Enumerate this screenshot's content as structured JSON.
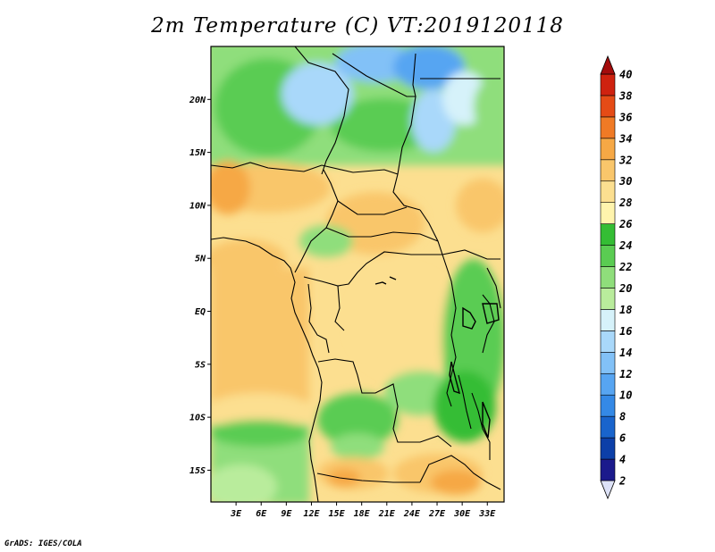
{
  "title": "2m Temperature (C) VT:2019120118",
  "credit": "GrADS: IGES/COLA",
  "map": {
    "lon_range": [
      0,
      35
    ],
    "lat_range": [
      -18,
      25
    ],
    "lat_ticks": [
      "20N",
      "15N",
      "10N",
      "5N",
      "EQ",
      "5S",
      "10S",
      "15S"
    ],
    "lon_ticks": [
      "3E",
      "6E",
      "9E",
      "12E",
      "15E",
      "18E",
      "21E",
      "24E",
      "27E",
      "30E",
      "33E"
    ]
  },
  "colorbar": {
    "labels": [
      "2",
      "4",
      "6",
      "8",
      "10",
      "12",
      "14",
      "16",
      "18",
      "20",
      "22",
      "24",
      "26",
      "28",
      "30",
      "32",
      "34",
      "36",
      "38",
      "40"
    ],
    "colors": [
      "#1b1a8c",
      "#0c3fa8",
      "#1964cc",
      "#3489e6",
      "#57a5f2",
      "#82c1f7",
      "#a9d8fa",
      "#d6f2fa",
      "#b9ec9c",
      "#8fde7b",
      "#5acc52",
      "#34bd34",
      "#fff4ad",
      "#fcdf90",
      "#f9c66b",
      "#f6a845",
      "#f07a25",
      "#e54b16",
      "#cf220f",
      "#a60a0a"
    ],
    "low_color": "#dde2f7",
    "high_color": "#a40c0c"
  }
}
